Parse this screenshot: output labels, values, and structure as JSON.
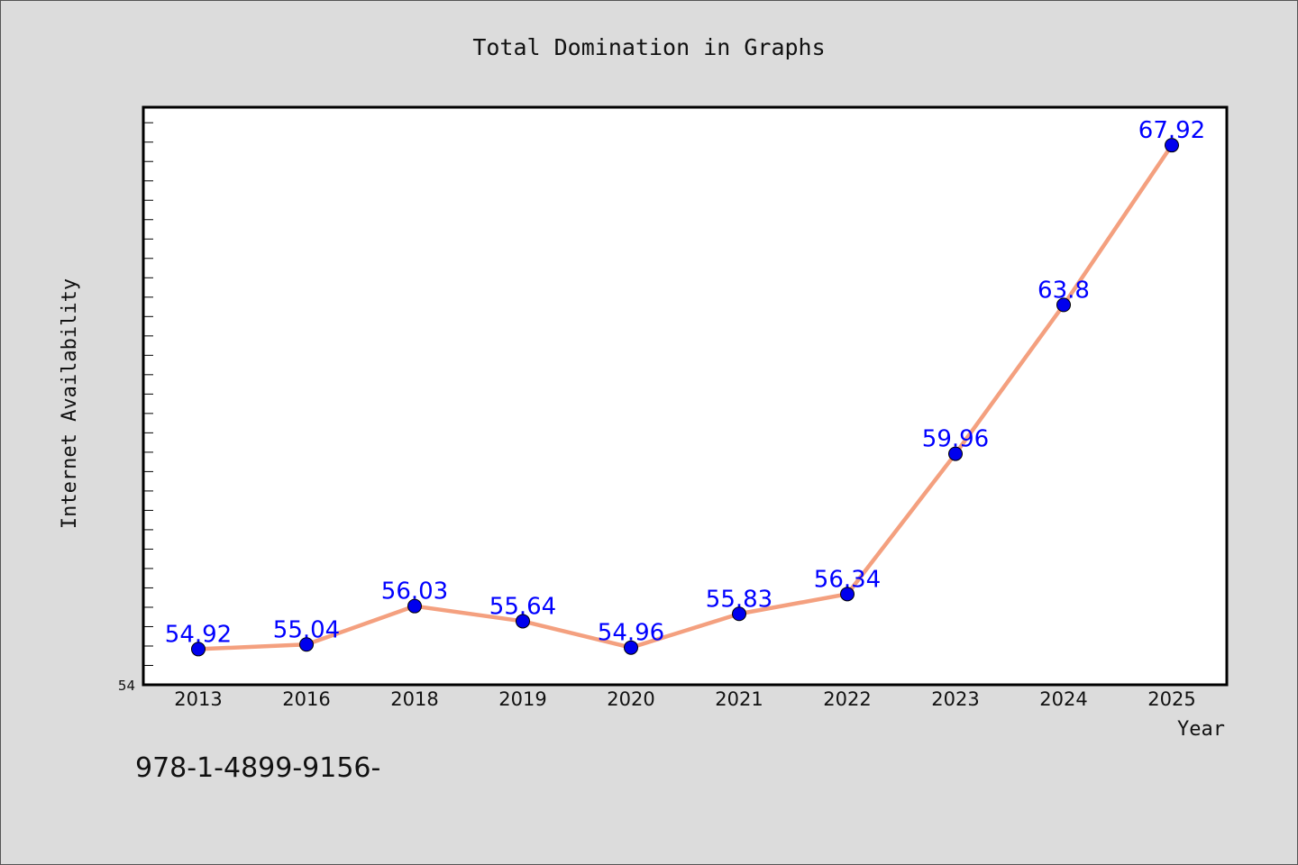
{
  "chart_data": {
    "type": "line",
    "title": "Total Domination in Graphs",
    "xlabel": "Year",
    "ylabel": "Internet Availability",
    "categories": [
      "2013",
      "2016",
      "2018",
      "2019",
      "2020",
      "2021",
      "2022",
      "2023",
      "2024",
      "2025"
    ],
    "series": [
      {
        "values": [
          54.92,
          55.04,
          56.03,
          55.64,
          54.96,
          55.83,
          56.34,
          59.96,
          63.8,
          67.92
        ],
        "labels": [
          "54.92",
          "55.04",
          "56.03",
          "55.64",
          "54.96",
          "55.83",
          "56.34",
          "59.96",
          "63.8",
          "67.92"
        ],
        "line_color": "#f4a07f",
        "marker_color": "#0000ee"
      }
    ],
    "ylim": [
      54,
      68.9
    ],
    "y_min_tick_label": "54",
    "grid": false,
    "legend": "none"
  },
  "footer": {
    "isbn": "978-1-4899-9156-"
  }
}
